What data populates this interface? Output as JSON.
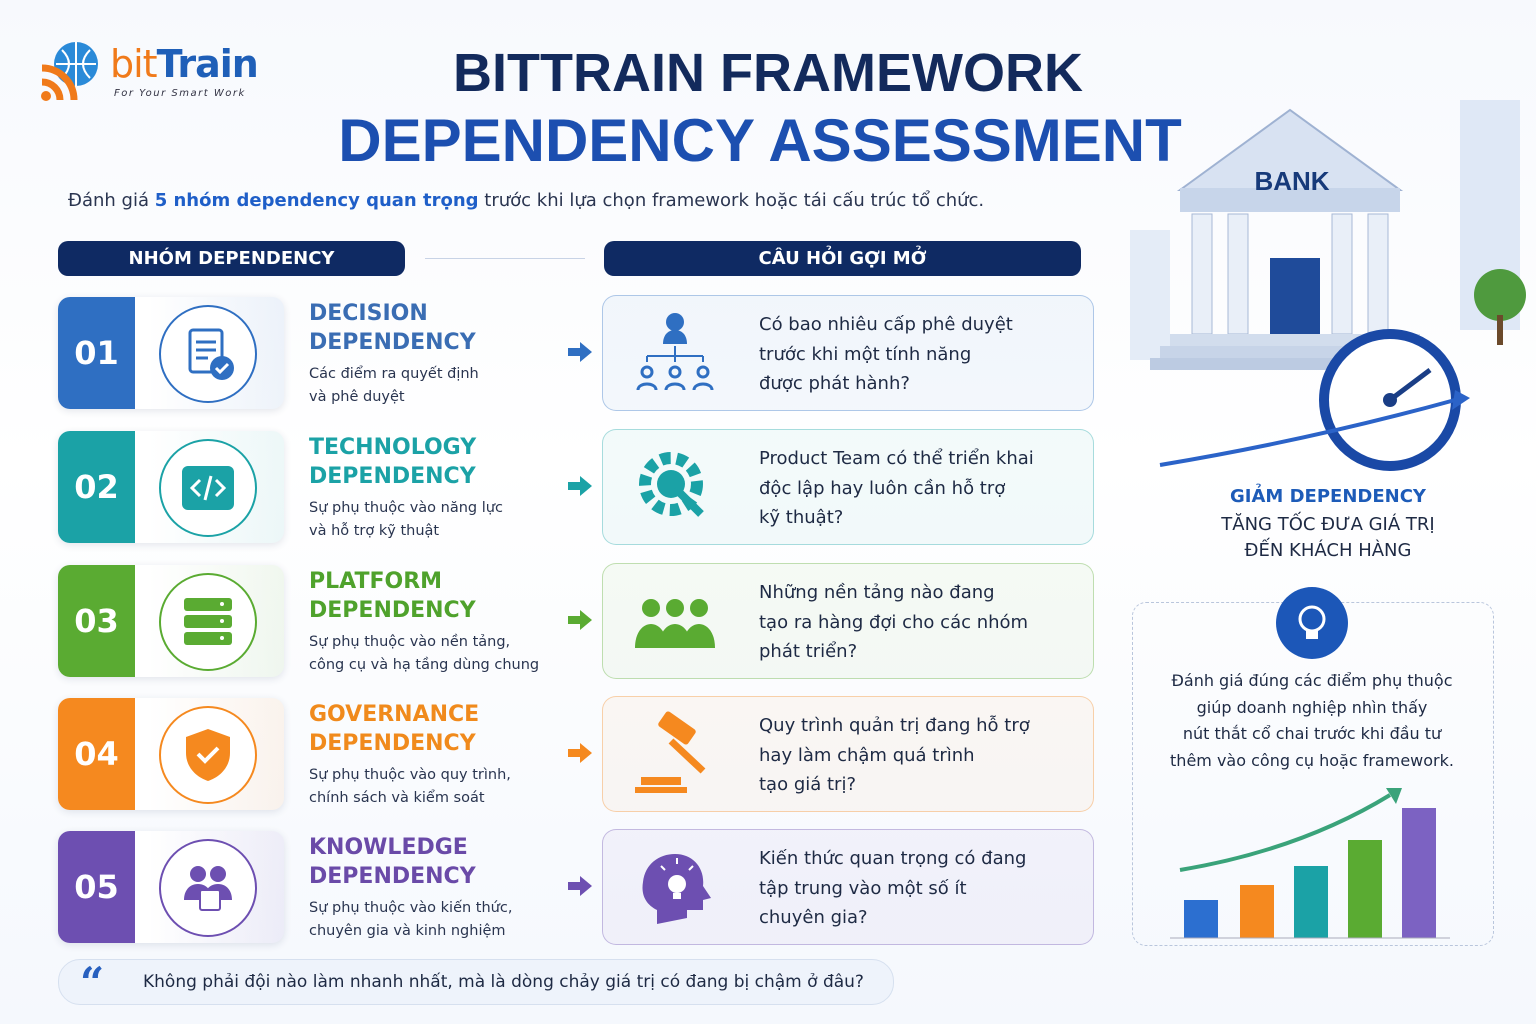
{
  "logo": {
    "brand_prefix": "bit",
    "brand_suffix": "Train",
    "tagline": "For Your Smart Work"
  },
  "header": {
    "title_line1": "BITTRAIN FRAMEWORK",
    "title_line2": "DEPENDENCY ASSESSMENT",
    "intro_before": "Đánh giá ",
    "intro_highlight": "5 nhóm dependency quan trọng",
    "intro_after": " trước khi lựa chọn framework hoặc tái cấu trúc tổ chức."
  },
  "columns": {
    "left": "NHÓM DEPENDENCY",
    "right": "CÂU HỎI GỢI MỞ"
  },
  "groups": [
    {
      "number": "01",
      "title": [
        "DECISION",
        "DEPENDENCY"
      ],
      "description": [
        "Các điểm ra quyết định",
        "và phê duyệt"
      ],
      "question": [
        "Có bao nhiêu cấp phê duyệt",
        "trước khi một tính năng",
        "được phát hành?"
      ],
      "color": "#2f6fc2",
      "title_color": "#3a6db3"
    },
    {
      "number": "02",
      "title": [
        "TECHNOLOGY",
        "DEPENDENCY"
      ],
      "description": [
        "Sự phụ thuộc vào năng lực",
        "và hỗ trợ kỹ thuật"
      ],
      "question": [
        "Product Team có thể triển khai",
        "độc lập hay luôn cần hỗ trợ",
        "kỹ thuật?"
      ],
      "color": "#1ba2a6",
      "title_color": "#1ba2a6"
    },
    {
      "number": "03",
      "title": [
        "PLATFORM",
        "DEPENDENCY"
      ],
      "description": [
        "Sự phụ thuộc vào nền tảng,",
        "công cụ và hạ tầng dùng chung"
      ],
      "question": [
        "Những nền tảng nào đang",
        "tạo ra hàng đợi cho các nhóm",
        "phát triển?"
      ],
      "color": "#5aab32",
      "title_color": "#4fa22c"
    },
    {
      "number": "04",
      "title": [
        "GOVERNANCE",
        "DEPENDENCY"
      ],
      "description": [
        "Sự phụ thuộc vào quy trình,",
        "chính sách và kiểm soát"
      ],
      "question": [
        "Quy trình quản trị đang hỗ trợ",
        "hay làm chậm quá trình",
        "tạo giá trị?"
      ],
      "color": "#f5891f",
      "title_color": "#f08a1c"
    },
    {
      "number": "05",
      "title": [
        "KNOWLEDGE",
        "DEPENDENCY"
      ],
      "description": [
        "Sự phụ thuộc vào kiến thức,",
        "chuyên gia và kinh nghiệm"
      ],
      "question": [
        "Kiến thức quan trọng có đang",
        "tập trung vào một số ít",
        "chuyên gia?"
      ],
      "color": "#6d4fb1",
      "title_color": "#6a4aa8"
    }
  ],
  "side": {
    "bank_label": "BANK",
    "headline": "GIẢM DEPENDENCY",
    "subline": [
      "TĂNG TỐC ĐƯA GIÁ TRỊ",
      "ĐẾN KHÁCH HÀNG"
    ],
    "insight": [
      "Đánh giá đúng các điểm phụ thuộc",
      "giúp doanh nghiệp nhìn thấy",
      "nút thắt cổ chai trước khi đầu tư",
      "thêm vào công cụ hoặc framework."
    ]
  },
  "quote": {
    "mark": "“",
    "text": "Không phải đội nào làm nhanh nhất, mà là dòng chảy giá trị có đang bị chậm ở đâu?"
  }
}
